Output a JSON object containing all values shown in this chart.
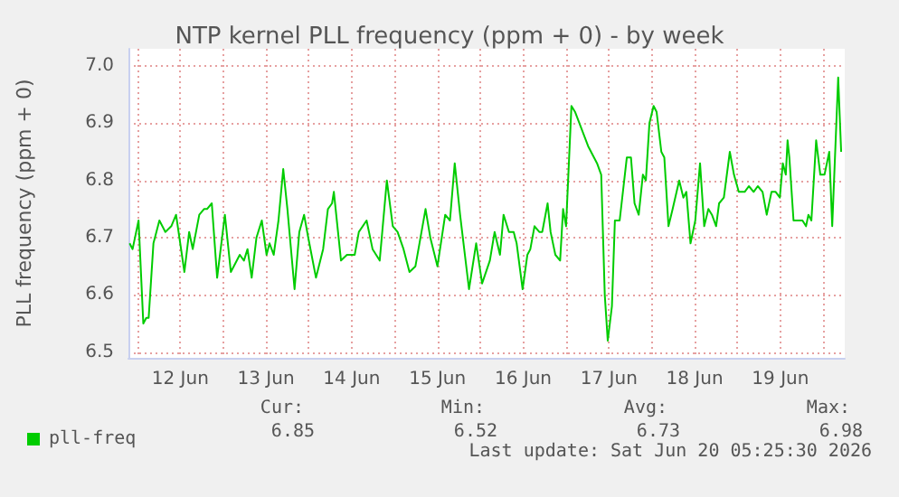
{
  "chart_data": {
    "type": "line",
    "title": "NTP kernel PLL frequency (ppm + 0) - by week",
    "ylabel": "PLL frequency (ppm + 0)",
    "x": [
      "2026-06-11T21:50",
      "2026-06-11T22:40",
      "2026-06-12T00:20",
      "2026-06-12T01:40",
      "2026-06-12T02:30",
      "2026-06-12T03:10",
      "2026-06-12T04:30",
      "2026-06-12T06:10",
      "2026-06-12T07:50",
      "2026-06-12T09:30",
      "2026-06-12T10:50",
      "2026-06-12T13:10",
      "2026-06-12T14:30",
      "2026-06-12T15:30",
      "2026-06-12T17:20",
      "2026-06-12T18:40",
      "2026-06-12T19:30",
      "2026-06-12T20:50",
      "2026-06-12T22:20",
      "2026-06-13T00:30",
      "2026-06-13T02:10",
      "2026-06-13T04:40",
      "2026-06-13T05:50",
      "2026-06-13T06:50",
      "2026-06-13T08:00",
      "2026-06-13T09:20",
      "2026-06-13T10:50",
      "2026-06-13T12:10",
      "2026-06-13T13:00",
      "2026-06-13T14:10",
      "2026-06-13T15:30",
      "2026-06-13T16:50",
      "2026-06-13T18:00",
      "2026-06-13T20:00",
      "2026-06-13T21:20",
      "2026-06-13T22:40",
      "2026-06-13T23:50",
      "2026-06-14T02:00",
      "2026-06-14T04:00",
      "2026-06-14T05:20",
      "2026-06-14T06:30",
      "2026-06-14T07:00",
      "2026-06-14T09:00",
      "2026-06-14T10:40",
      "2026-06-14T12:50",
      "2026-06-14T14:00",
      "2026-06-14T16:10",
      "2026-06-14T17:50",
      "2026-06-14T19:50",
      "2026-06-14T21:50",
      "2026-06-14T23:30",
      "2026-06-15T00:50",
      "2026-06-15T02:30",
      "2026-06-15T04:10",
      "2026-06-15T05:50",
      "2026-06-15T08:40",
      "2026-06-15T10:00",
      "2026-06-15T12:00",
      "2026-06-15T14:10",
      "2026-06-15T15:30",
      "2026-06-15T16:50",
      "2026-06-15T18:20",
      "2026-06-15T20:50",
      "2026-06-15T22:50",
      "2026-06-16T00:30",
      "2026-06-16T02:40",
      "2026-06-16T04:00",
      "2026-06-16T05:30",
      "2026-06-16T06:30",
      "2026-06-16T08:00",
      "2026-06-16T09:20",
      "2026-06-16T10:10",
      "2026-06-16T11:50",
      "2026-06-16T13:10",
      "2026-06-16T14:00",
      "2026-06-16T15:10",
      "2026-06-16T16:30",
      "2026-06-16T17:20",
      "2026-06-16T18:50",
      "2026-06-16T19:40",
      "2026-06-16T21:00",
      "2026-06-16T22:20",
      "2026-06-16T23:10",
      "2026-06-17T00:00",
      "2026-06-17T01:30",
      "2026-06-17T02:30",
      "2026-06-17T06:10",
      "2026-06-17T08:40",
      "2026-06-17T09:50",
      "2026-06-17T10:50",
      "2026-06-17T11:40",
      "2026-06-17T12:50",
      "2026-06-17T13:40",
      "2026-06-17T15:00",
      "2026-06-17T17:00",
      "2026-06-17T18:10",
      "2026-06-17T19:10",
      "2026-06-17T20:20",
      "2026-06-17T21:30",
      "2026-06-17T22:20",
      "2026-06-17T23:20",
      "2026-06-18T00:30",
      "2026-06-18T01:20",
      "2026-06-18T02:40",
      "2026-06-18T03:30",
      "2026-06-18T04:40",
      "2026-06-18T05:50",
      "2026-06-18T07:40",
      "2026-06-18T08:50",
      "2026-06-18T09:40",
      "2026-06-18T10:50",
      "2026-06-18T12:10",
      "2026-06-18T13:30",
      "2026-06-18T14:40",
      "2026-06-18T15:50",
      "2026-06-18T16:50",
      "2026-06-18T18:00",
      "2026-06-18T18:50",
      "2026-06-18T20:10",
      "2026-06-18T21:50",
      "2026-06-18T23:00",
      "2026-06-19T00:20",
      "2026-06-19T02:00",
      "2026-06-19T03:10",
      "2026-06-19T04:30",
      "2026-06-19T05:40",
      "2026-06-19T07:00",
      "2026-06-19T08:10",
      "2026-06-19T09:30",
      "2026-06-19T10:40",
      "2026-06-19T11:50",
      "2026-06-19T12:40",
      "2026-06-19T13:30",
      "2026-06-19T14:00",
      "2026-06-19T14:30",
      "2026-06-19T15:40",
      "2026-06-19T16:50",
      "2026-06-19T18:10",
      "2026-06-19T19:10",
      "2026-06-19T19:50",
      "2026-06-19T20:40",
      "2026-06-19T22:00",
      "2026-06-19T23:10",
      "2026-06-20T00:20",
      "2026-06-20T01:40",
      "2026-06-20T02:30",
      "2026-06-20T04:10",
      "2026-06-20T05:00"
    ],
    "series": [
      {
        "name": "pll-freq",
        "color": "#00cc00",
        "values": [
          6.69,
          6.68,
          6.73,
          6.55,
          6.56,
          6.56,
          6.69,
          6.73,
          6.71,
          6.72,
          6.74,
          6.64,
          6.71,
          6.68,
          6.74,
          6.75,
          6.75,
          6.76,
          6.63,
          6.74,
          6.64,
          6.67,
          6.66,
          6.68,
          6.63,
          6.7,
          6.73,
          6.67,
          6.69,
          6.67,
          6.73,
          6.82,
          6.75,
          6.61,
          6.71,
          6.74,
          6.7,
          6.63,
          6.68,
          6.75,
          6.76,
          6.78,
          6.66,
          6.67,
          6.67,
          6.71,
          6.73,
          6.68,
          6.66,
          6.8,
          6.72,
          6.71,
          6.68,
          6.64,
          6.65,
          6.75,
          6.7,
          6.65,
          6.74,
          6.73,
          6.83,
          6.74,
          6.61,
          6.69,
          6.62,
          6.66,
          6.71,
          6.67,
          6.74,
          6.71,
          6.71,
          6.69,
          6.61,
          6.67,
          6.68,
          6.72,
          6.71,
          6.71,
          6.76,
          6.71,
          6.67,
          6.66,
          6.75,
          6.72,
          6.93,
          6.92,
          6.86,
          6.83,
          6.81,
          6.6,
          6.52,
          6.58,
          6.73,
          6.73,
          6.84,
          6.84,
          6.76,
          6.74,
          6.81,
          6.8,
          6.9,
          6.93,
          6.92,
          6.85,
          6.84,
          6.72,
          6.75,
          6.8,
          6.77,
          6.78,
          6.69,
          6.73,
          6.83,
          6.72,
          6.75,
          6.74,
          6.72,
          6.76,
          6.77,
          6.85,
          6.81,
          6.78,
          6.78,
          6.79,
          6.78,
          6.79,
          6.78,
          6.74,
          6.78,
          6.78,
          6.77,
          6.83,
          6.81,
          6.87,
          6.84,
          6.73,
          6.73,
          6.73,
          6.72,
          6.74,
          6.73,
          6.87,
          6.81,
          6.81,
          6.85,
          6.72,
          6.98,
          6.85
        ]
      }
    ],
    "xlim": [
      "2026-06-11T21:30",
      "2026-06-20T06:00"
    ],
    "xticks": [
      {
        "value": "2026-06-12T00:00",
        "label": null
      },
      {
        "value": "2026-06-12T12:00",
        "label": "12 Jun"
      },
      {
        "value": "2026-06-13T00:00",
        "label": null
      },
      {
        "value": "2026-06-13T12:00",
        "label": "13 Jun"
      },
      {
        "value": "2026-06-14T00:00",
        "label": null
      },
      {
        "value": "2026-06-14T12:00",
        "label": "14 Jun"
      },
      {
        "value": "2026-06-15T00:00",
        "label": null
      },
      {
        "value": "2026-06-15T12:00",
        "label": "15 Jun"
      },
      {
        "value": "2026-06-16T00:00",
        "label": null
      },
      {
        "value": "2026-06-16T12:00",
        "label": "16 Jun"
      },
      {
        "value": "2026-06-17T00:00",
        "label": null
      },
      {
        "value": "2026-06-17T12:00",
        "label": "17 Jun"
      },
      {
        "value": "2026-06-18T00:00",
        "label": null
      },
      {
        "value": "2026-06-18T12:00",
        "label": "18 Jun"
      },
      {
        "value": "2026-06-19T00:00",
        "label": null
      },
      {
        "value": "2026-06-19T12:00",
        "label": "19 Jun"
      },
      {
        "value": "2026-06-20T00:00",
        "label": null
      }
    ],
    "ylim": [
      6.49,
      7.03
    ],
    "yticks": [
      6.5,
      6.6,
      6.7,
      6.8,
      6.9,
      {
        "value": 7.0,
        "label": "7.0"
      }
    ],
    "grid": true,
    "legend": "bottom left",
    "marker": "none",
    "line_style": "solid",
    "annotations": [
      "Cur:",
      "Min:",
      "Avg:",
      "Max:",
      "6.85",
      "6.52",
      "6.73",
      "6.98",
      "Last update: Sat Jun 20 05:25:30 2026"
    ]
  }
}
